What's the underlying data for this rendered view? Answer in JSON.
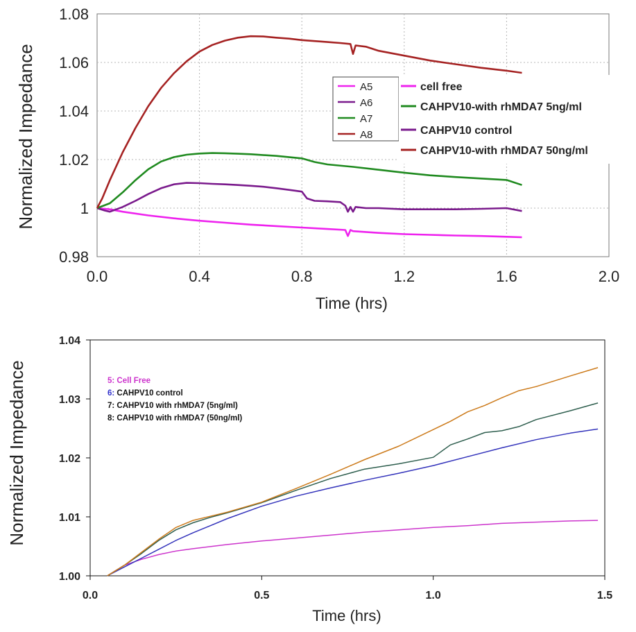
{
  "chart_data": [
    {
      "type": "line",
      "xlabel": "Time (hrs)",
      "ylabel": "Normalized Impedance",
      "xlim": [
        0.0,
        2.0
      ],
      "ylim": [
        0.98,
        1.08
      ],
      "x_ticks": [
        "0.0",
        "0.4",
        "0.8",
        "1.2",
        "1.6",
        "2.0"
      ],
      "y_ticks": [
        "0.98",
        "1",
        "1.02",
        "1.04",
        "1.06",
        "1.08"
      ],
      "grid": true,
      "legend_placement": "center-right",
      "legend_ids": [
        "A5",
        "A6",
        "A7",
        "A8"
      ],
      "series": [
        {
          "name": "cell free",
          "color": "#ee22ee",
          "x": [
            0.0,
            0.05,
            0.1,
            0.2,
            0.3,
            0.4,
            0.5,
            0.6,
            0.7,
            0.8,
            0.9,
            0.97,
            0.98,
            0.99,
            1.0,
            1.1,
            1.2,
            1.3,
            1.4,
            1.5,
            1.6,
            1.66
          ],
          "y": [
            1.0,
            0.9995,
            0.9985,
            0.997,
            0.9958,
            0.9948,
            0.994,
            0.9932,
            0.9926,
            0.992,
            0.9914,
            0.991,
            0.9885,
            0.991,
            0.9905,
            0.9898,
            0.9893,
            0.989,
            0.9887,
            0.9885,
            0.9882,
            0.988
          ]
        },
        {
          "name": "CAHPV10 control",
          "color": "#7a1a8c",
          "x": [
            0.0,
            0.03,
            0.05,
            0.1,
            0.15,
            0.2,
            0.25,
            0.3,
            0.35,
            0.4,
            0.45,
            0.5,
            0.55,
            0.6,
            0.65,
            0.7,
            0.75,
            0.8,
            0.82,
            0.85,
            0.9,
            0.95,
            0.97,
            0.98,
            0.99,
            1.0,
            1.01,
            1.05,
            1.1,
            1.2,
            1.3,
            1.4,
            1.5,
            1.6,
            1.66
          ],
          "y": [
            1.0,
            0.999,
            0.9985,
            1.0005,
            1.003,
            1.0058,
            1.0082,
            1.0098,
            1.0104,
            1.0103,
            1.01,
            1.0098,
            1.0095,
            1.0092,
            1.0088,
            1.0082,
            1.0075,
            1.0068,
            1.004,
            1.003,
            1.0028,
            1.0025,
            1.001,
            0.9985,
            1.0005,
            0.9985,
            1.0005,
            1.0,
            1.0,
            0.9995,
            0.9995,
            0.9995,
            0.9997,
            1.0,
            0.9988
          ]
        },
        {
          "name": "CAHPV10-with rhMDA7 5ng/ml",
          "color": "#1f8a1f",
          "x": [
            0.0,
            0.05,
            0.1,
            0.15,
            0.2,
            0.25,
            0.3,
            0.35,
            0.4,
            0.45,
            0.5,
            0.55,
            0.6,
            0.7,
            0.8,
            0.85,
            0.9,
            1.0,
            1.1,
            1.2,
            1.3,
            1.4,
            1.5,
            1.6,
            1.66
          ],
          "y": [
            1.0,
            1.002,
            1.0065,
            1.0115,
            1.016,
            1.0192,
            1.021,
            1.022,
            1.0225,
            1.0227,
            1.0226,
            1.0224,
            1.0222,
            1.0215,
            1.0205,
            1.019,
            1.018,
            1.017,
            1.0158,
            1.0146,
            1.0135,
            1.0128,
            1.0122,
            1.0116,
            1.0095
          ]
        },
        {
          "name": "CAHPV10-with rhMDA7 50ng/ml",
          "color": "#a52222",
          "x": [
            0.0,
            0.02,
            0.05,
            0.1,
            0.15,
            0.2,
            0.25,
            0.3,
            0.35,
            0.4,
            0.45,
            0.5,
            0.55,
            0.6,
            0.65,
            0.7,
            0.75,
            0.8,
            0.85,
            0.9,
            0.95,
            0.99,
            1.0,
            1.01,
            1.05,
            1.1,
            1.2,
            1.3,
            1.4,
            1.5,
            1.6,
            1.66
          ],
          "y": [
            1.0,
            1.004,
            1.0115,
            1.023,
            1.033,
            1.042,
            1.0495,
            1.0555,
            1.0605,
            1.0645,
            1.0672,
            1.069,
            1.0702,
            1.0708,
            1.0707,
            1.0702,
            1.0698,
            1.0692,
            1.0688,
            1.0684,
            1.068,
            1.0676,
            1.0635,
            1.067,
            1.0665,
            1.0648,
            1.0628,
            1.0608,
            1.0593,
            1.0578,
            1.0566,
            1.0557
          ]
        }
      ]
    },
    {
      "type": "line",
      "xlabel": "Time (hrs)",
      "ylabel": "Normalized Impedance",
      "xlim": [
        0.0,
        1.5
      ],
      "ylim": [
        1.0,
        1.04
      ],
      "x_ticks": [
        "0.0",
        "0.5",
        "1.0",
        "1.5"
      ],
      "y_ticks": [
        "1.00",
        "1.01",
        "1.02",
        "1.03",
        "1.04"
      ],
      "grid": false,
      "legend_placement": "top-left",
      "legend_numbers": [
        "5:",
        "6:",
        "7:",
        "8:"
      ],
      "series": [
        {
          "name": "Cell Free",
          "color": "#cc33cc",
          "number_color": "#cc33cc",
          "x": [
            0.05,
            0.1,
            0.15,
            0.2,
            0.25,
            0.3,
            0.4,
            0.5,
            0.6,
            0.7,
            0.8,
            0.9,
            1.0,
            1.1,
            1.2,
            1.3,
            1.4,
            1.48
          ],
          "y": [
            1.0,
            1.0018,
            1.0028,
            1.0036,
            1.0042,
            1.0046,
            1.0053,
            1.0059,
            1.0064,
            1.0069,
            1.0074,
            1.0078,
            1.0082,
            1.0085,
            1.0089,
            1.0091,
            1.0093,
            1.0094
          ]
        },
        {
          "name": "CAHPV10 control",
          "color": "#3333bb",
          "number_color": "#3333cc",
          "x": [
            0.05,
            0.1,
            0.15,
            0.2,
            0.25,
            0.3,
            0.35,
            0.4,
            0.5,
            0.6,
            0.7,
            0.8,
            0.9,
            1.0,
            1.1,
            1.2,
            1.3,
            1.4,
            1.48
          ],
          "y": [
            1.0,
            1.0015,
            1.003,
            1.0045,
            1.006,
            1.0073,
            1.0085,
            1.0097,
            1.0118,
            1.0135,
            1.0149,
            1.0162,
            1.0174,
            1.0187,
            1.0202,
            1.0217,
            1.0231,
            1.0242,
            1.0249
          ]
        },
        {
          "name": "CAHPV10 with rhMDA7  (5ng/ml)",
          "color": "#2e5e4e",
          "number_color": "#111111",
          "x": [
            0.05,
            0.1,
            0.15,
            0.2,
            0.25,
            0.3,
            0.35,
            0.4,
            0.5,
            0.6,
            0.7,
            0.8,
            0.9,
            1.0,
            1.05,
            1.1,
            1.15,
            1.2,
            1.25,
            1.3,
            1.4,
            1.48
          ],
          "y": [
            1.0,
            1.0018,
            1.0038,
            1.006,
            1.0078,
            1.009,
            1.0099,
            1.0107,
            1.0124,
            1.0145,
            1.0165,
            1.0181,
            1.019,
            1.0201,
            1.0222,
            1.0232,
            1.0243,
            1.0246,
            1.0253,
            1.0265,
            1.028,
            1.0293
          ]
        },
        {
          "name": "CAHPV10 with rhMDA7 (50ng/ml)",
          "color": "#cc7a1a",
          "number_color": "#111111",
          "x": [
            0.05,
            0.1,
            0.15,
            0.2,
            0.25,
            0.3,
            0.35,
            0.4,
            0.5,
            0.6,
            0.7,
            0.8,
            0.9,
            1.0,
            1.05,
            1.1,
            1.15,
            1.2,
            1.25,
            1.3,
            1.4,
            1.48
          ],
          "y": [
            1.0,
            1.0018,
            1.004,
            1.0062,
            1.0082,
            1.0094,
            1.0101,
            1.0108,
            1.0125,
            1.0148,
            1.0172,
            1.0197,
            1.022,
            1.0248,
            1.0262,
            1.0278,
            1.0289,
            1.0302,
            1.0314,
            1.0321,
            1.0339,
            1.0353
          ]
        }
      ]
    }
  ]
}
